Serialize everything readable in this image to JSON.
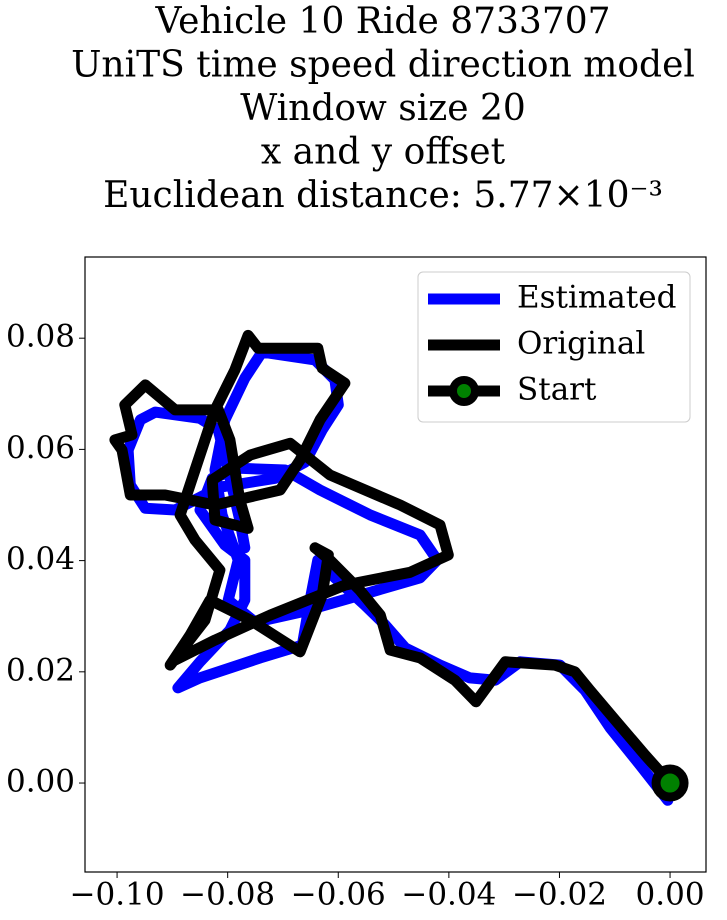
{
  "chart_data": {
    "type": "line",
    "title_lines": [
      "Vehicle 10 Ride 8733707",
      "UniTS time speed direction model",
      "Window size 20",
      "x and y offset",
      "Euclidean distance: 5.77×10⁻³"
    ],
    "xlim": [
      -0.1058,
      0.0065
    ],
    "ylim": [
      -0.016,
      0.0946
    ],
    "xticks": [
      {
        "value": -0.1,
        "label": "−0.10"
      },
      {
        "value": -0.08,
        "label": "−0.08"
      },
      {
        "value": -0.06,
        "label": "−0.06"
      },
      {
        "value": -0.04,
        "label": "−0.04"
      },
      {
        "value": -0.02,
        "label": "−0.02"
      },
      {
        "value": 0,
        "label": "0.00"
      }
    ],
    "yticks": [
      {
        "value": 0,
        "label": "0.00"
      },
      {
        "value": 0.02,
        "label": "0.02"
      },
      {
        "value": 0.04,
        "label": "0.04"
      },
      {
        "value": 0.06,
        "label": "0.06"
      },
      {
        "value": 0.08,
        "label": "0.08"
      }
    ],
    "legend": "upper right",
    "series": [
      {
        "name": "Estimated",
        "color": "#0000ff",
        "x": [
          -0.0004,
          -0.0054,
          -0.0108,
          -0.0154,
          -0.0199,
          -0.0271,
          -0.0316,
          -0.0362,
          -0.0416,
          -0.0479,
          -0.0515,
          -0.0552,
          -0.0606,
          -0.0637,
          -0.0651,
          -0.0665,
          -0.0741,
          -0.085,
          -0.089,
          -0.085,
          -0.0796,
          -0.0769,
          -0.0769,
          -0.0805,
          -0.085,
          -0.0828,
          -0.0778,
          -0.0696,
          -0.0633,
          -0.0542,
          -0.0452,
          -0.0421,
          -0.0452,
          -0.0542,
          -0.0669,
          -0.075,
          -0.0799,
          -0.0781,
          -0.081,
          -0.0823,
          -0.0805,
          -0.0769,
          -0.0738,
          -0.0642,
          -0.0606,
          -0.06,
          -0.0629,
          -0.066,
          -0.0714,
          -0.0814,
          -0.0895,
          -0.0949,
          -0.0976,
          -0.098,
          -0.0958,
          -0.0931,
          -0.085,
          -0.0817,
          -0.0799,
          -0.0778,
          -0.0769
        ],
        "y": [
          -0.0031,
          0.0032,
          0.0099,
          0.0167,
          0.0212,
          0.0218,
          0.0185,
          0.0189,
          0.0212,
          0.0243,
          0.0284,
          0.032,
          0.0369,
          0.0401,
          0.0329,
          0.0248,
          0.0225,
          0.0189,
          0.0171,
          0.0218,
          0.0275,
          0.0329,
          0.0401,
          0.0428,
          0.0491,
          0.0548,
          0.0566,
          0.0563,
          0.0527,
          0.0482,
          0.0446,
          0.0401,
          0.0369,
          0.0343,
          0.0307,
          0.0289,
          0.0329,
          0.0401,
          0.0482,
          0.0563,
          0.0653,
          0.0728,
          0.0775,
          0.0761,
          0.0725,
          0.068,
          0.0635,
          0.0577,
          0.0548,
          0.0532,
          0.0491,
          0.0494,
          0.0536,
          0.0599,
          0.0653,
          0.0667,
          0.0656,
          0.0635,
          0.0563,
          0.0473,
          0.0423
        ]
      },
      {
        "name": "Original",
        "color": "#000000",
        "x": [
          0,
          -0.0045,
          -0.0099,
          -0.0145,
          -0.0172,
          -0.0208,
          -0.0298,
          -0.0329,
          -0.0351,
          -0.0389,
          -0.0452,
          -0.0506,
          -0.0524,
          -0.0561,
          -0.0615,
          -0.0642,
          -0.0618,
          -0.0629,
          -0.0669,
          -0.0759,
          -0.0832,
          -0.0868,
          -0.0904,
          -0.0841,
          -0.0814,
          -0.0859,
          -0.0886,
          -0.0859,
          -0.0823,
          -0.0787,
          -0.0763,
          -0.0745,
          -0.0637,
          -0.0629,
          -0.0588,
          -0.0633,
          -0.0669,
          -0.0705,
          -0.0823,
          -0.0913,
          -0.0976,
          -0.0991,
          -0.1004,
          -0.0973,
          -0.0986,
          -0.0949,
          -0.0895,
          -0.0817,
          -0.0796,
          -0.0778,
          -0.0763,
          -0.0823,
          -0.0828,
          -0.0759,
          -0.0687,
          -0.0615,
          -0.0488,
          -0.0416,
          -0.0401,
          -0.047,
          -0.0588,
          -0.0723,
          -0.0823,
          -0.0895
        ],
        "y": [
          0,
          0.005,
          0.0113,
          0.0167,
          0.02,
          0.0212,
          0.0218,
          0.0176,
          0.0146,
          0.0185,
          0.0225,
          0.0239,
          0.0302,
          0.0347,
          0.0401,
          0.0423,
          0.041,
          0.0338,
          0.0236,
          0.0293,
          0.0329,
          0.0266,
          0.0212,
          0.0293,
          0.0383,
          0.0437,
          0.0482,
          0.0563,
          0.0671,
          0.0743,
          0.0805,
          0.0782,
          0.0782,
          0.0746,
          0.0719,
          0.0653,
          0.0581,
          0.0527,
          0.05,
          0.0518,
          0.0518,
          0.0599,
          0.0617,
          0.0626,
          0.068,
          0.0716,
          0.0671,
          0.0671,
          0.0617,
          0.0509,
          0.0458,
          0.0473,
          0.0545,
          0.059,
          0.0611,
          0.0554,
          0.05,
          0.0464,
          0.041,
          0.0379,
          0.0356,
          0.0302,
          0.0257,
          0.0221
        ]
      },
      {
        "name": "Start",
        "color": "#000000",
        "marker_color": "#008000",
        "x": [
          0
        ],
        "y": [
          0
        ]
      }
    ]
  }
}
